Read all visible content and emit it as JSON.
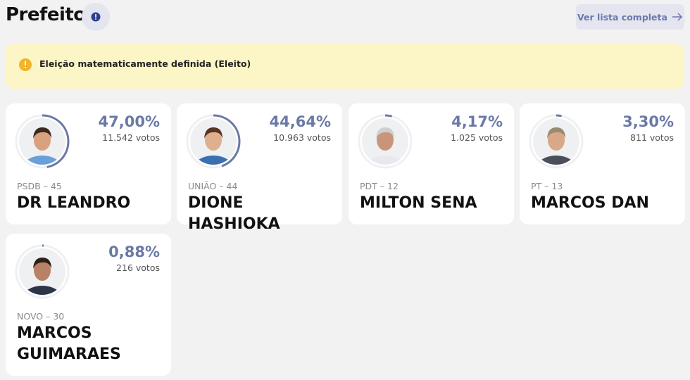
{
  "header": {
    "title": "Prefeito",
    "button": "Ver lista completa"
  },
  "notice": {
    "text": "Eleição matematicamente definida (Eleito)"
  },
  "candidates": [
    {
      "percent": 47.0,
      "percent_label": "47,00%",
      "votes": "11.542 votos",
      "party": "PSDB – 45",
      "name": "DR LEANDRO"
    },
    {
      "percent": 44.64,
      "percent_label": "44,64%",
      "votes": "10.963 votos",
      "party": "UNIÃO – 44",
      "name": "DIONE HASHIOKA"
    },
    {
      "percent": 4.17,
      "percent_label": "4,17%",
      "votes": "1.025 votos",
      "party": "PDT – 12",
      "name": "MILTON SENA"
    },
    {
      "percent": 3.3,
      "percent_label": "3,30%",
      "votes": "811 votos",
      "party": "PT – 13",
      "name": "MARCOS DAN"
    },
    {
      "percent": 0.88,
      "percent_label": "0,88%",
      "votes": "216 votos",
      "party": "NOVO – 30",
      "name": "MARCOS GUIMARAES"
    }
  ]
}
